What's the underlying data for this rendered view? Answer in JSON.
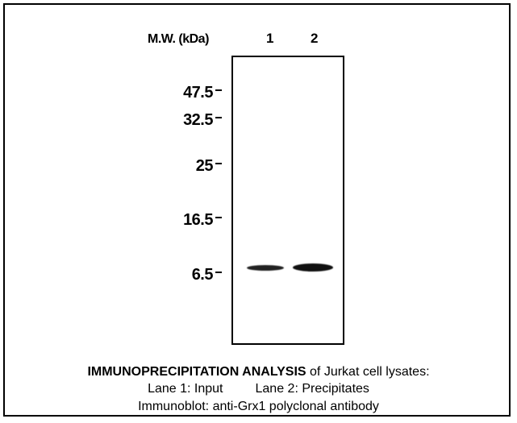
{
  "header": {
    "mw_label": "M.W. (kDa)",
    "lanes": [
      "1",
      "2"
    ]
  },
  "markers": [
    "47.5",
    "32.5",
    "25",
    "16.5",
    "6.5"
  ],
  "caption": {
    "line1_bold": "IMMUNOPRECIPITATION ANALYSIS",
    "line1_rest": " of Jurkat cell lysates:",
    "lane1": "Lane 1: Input",
    "lane2": "Lane 2: Precipitates",
    "line3": "Immunoblot: anti-Grx1 polyclonal antibody"
  }
}
